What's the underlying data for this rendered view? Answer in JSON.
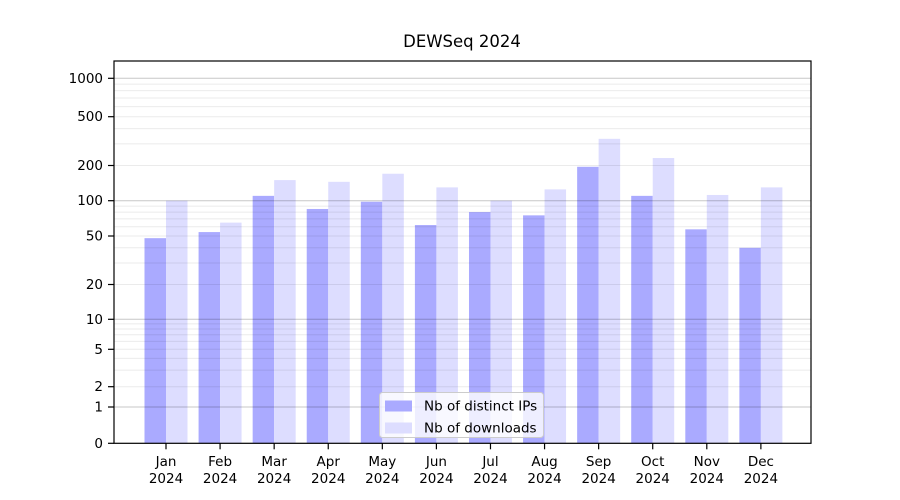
{
  "title": "DEWSeq 2024",
  "chart_data": {
    "type": "bar",
    "title": "DEWSeq 2024",
    "x_labels": [
      {
        "line1": "Jan",
        "line2": "2024"
      },
      {
        "line1": "Feb",
        "line2": "2024"
      },
      {
        "line1": "Mar",
        "line2": "2024"
      },
      {
        "line1": "Apr",
        "line2": "2024"
      },
      {
        "line1": "May",
        "line2": "2024"
      },
      {
        "line1": "Jun",
        "line2": "2024"
      },
      {
        "line1": "Jul",
        "line2": "2024"
      },
      {
        "line1": "Aug",
        "line2": "2024"
      },
      {
        "line1": "Sep",
        "line2": "2024"
      },
      {
        "line1": "Oct",
        "line2": "2024"
      },
      {
        "line1": "Nov",
        "line2": "2024"
      },
      {
        "line1": "Dec",
        "line2": "2024"
      }
    ],
    "series": [
      {
        "name": "Nb of distinct IPs",
        "color": "#aaaaff",
        "values": [
          48,
          54,
          110,
          85,
          98,
          62,
          80,
          75,
          195,
          110,
          57,
          40
        ]
      },
      {
        "name": "Nb of downloads",
        "color": "#ddddff",
        "values": [
          100,
          65,
          150,
          145,
          170,
          130,
          100,
          125,
          330,
          230,
          112,
          130
        ]
      }
    ],
    "y_ticks": [
      0,
      1,
      2,
      5,
      10,
      20,
      50,
      100,
      200,
      500,
      1000
    ],
    "y_scale": "log-like with linear region below 1",
    "ylim": [
      0,
      1400
    ],
    "grid": true,
    "legend_position": "lower center"
  }
}
